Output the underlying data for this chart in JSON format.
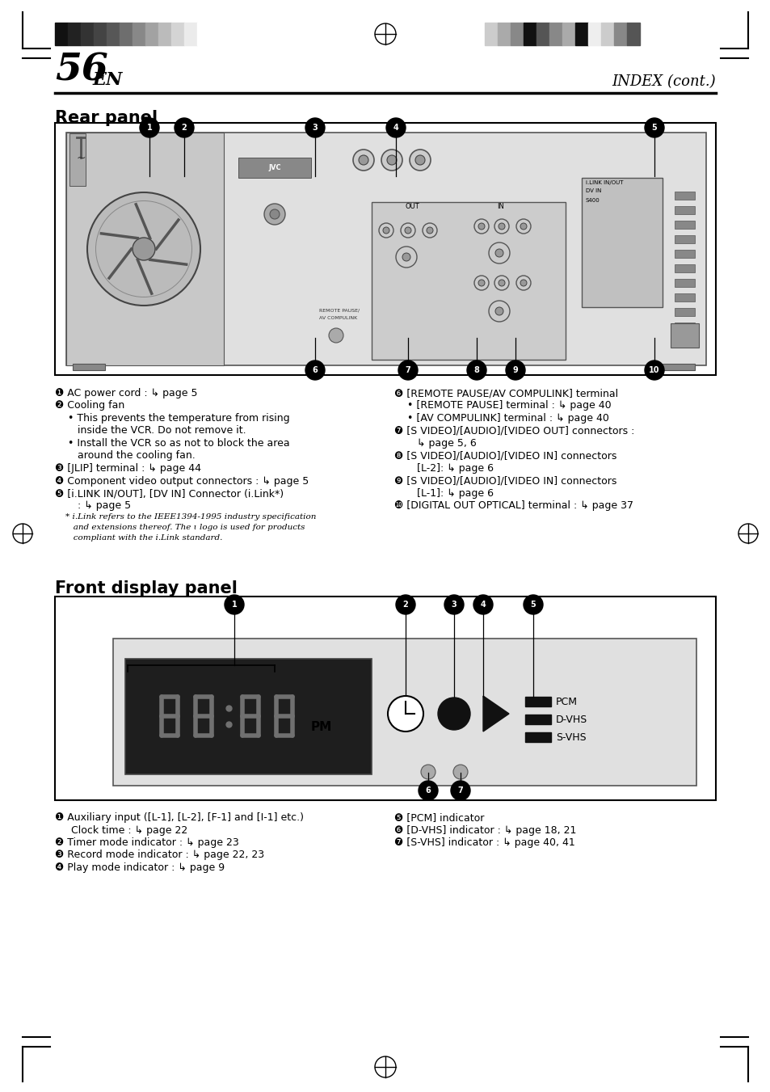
{
  "page_number": "56",
  "page_suffix": "EN",
  "header_right": "INDEX (cont.)",
  "section1_title": "Rear panel",
  "section2_title": "Front display panel",
  "bg_color": "#ffffff",
  "left_color_strips": [
    "#111111",
    "#222222",
    "#333333",
    "#444444",
    "#575757",
    "#6e6e6e",
    "#888888",
    "#a2a2a2",
    "#bbbbbb",
    "#d4d4d4",
    "#ebebeb",
    "#ffffff"
  ],
  "right_color_strips": [
    "#cccccc",
    "#aaaaaa",
    "#888888",
    "#111111",
    "#555555",
    "#888888",
    "#aaaaaa",
    "#111111",
    "#eeeeee",
    "#cccccc",
    "#888888",
    "#555555"
  ],
  "rear_text_left": [
    [
      "bold",
      "❶ AC power cord : ↳ page 5"
    ],
    [
      "bold",
      "❷ Cooling fan"
    ],
    [
      "normal",
      "    • This prevents the temperature from rising"
    ],
    [
      "normal",
      "       inside the VCR. Do not remove it."
    ],
    [
      "normal",
      "    • Install the VCR so as not to block the area"
    ],
    [
      "normal",
      "       around the cooling fan."
    ],
    [
      "bold",
      "❸ [JLIP] terminal : ↳ page 44"
    ],
    [
      "bold",
      "❹ Component video output connectors : ↳ page 5"
    ],
    [
      "bold",
      "❺ [i.LINK IN/OUT], [DV IN] Connector (i.Link*)"
    ],
    [
      "normal",
      "       : ↳ page 5"
    ],
    [
      "italic",
      "    * i.Link refers to the IEEE1394-1995 industry specification"
    ],
    [
      "italic",
      "       and extensions thereof. The ɩ logo is used for products"
    ],
    [
      "italic",
      "       compliant with the i.Link standard."
    ]
  ],
  "rear_text_right": [
    [
      "bold",
      "❻ [REMOTE PAUSE/AV COMPULINK] terminal"
    ],
    [
      "normal",
      "    • [REMOTE PAUSE] terminal : ↳ page 40"
    ],
    [
      "normal",
      "    • [AV COMPULINK] terminal : ↳ page 40"
    ],
    [
      "bold",
      "❼ [S VIDEO]/[AUDIO]/[VIDEO OUT] connectors :"
    ],
    [
      "normal",
      "       ↳ page 5, 6"
    ],
    [
      "bold",
      "❽ [S VIDEO]/[AUDIO]/[VIDEO IN] connectors"
    ],
    [
      "normal",
      "       [L-2]: ↳ page 6"
    ],
    [
      "bold",
      "❾ [S VIDEO]/[AUDIO]/[VIDEO IN] connectors"
    ],
    [
      "normal",
      "       [L-1]: ↳ page 6"
    ],
    [
      "bold",
      "❿ [DIGITAL OUT OPTICAL] terminal : ↳ page 37"
    ]
  ],
  "front_text_left": [
    [
      "bold",
      "❶ Auxiliary input ([L-1], [L-2], [F-1] and [I-1] etc.)"
    ],
    [
      "normal",
      "     Clock time : ↳ page 22"
    ],
    [
      "bold",
      "❷ Timer mode indicator : ↳ page 23"
    ],
    [
      "bold",
      "❸ Record mode indicator : ↳ page 22, 23"
    ],
    [
      "bold",
      "❹ Play mode indicator : ↳ page 9"
    ]
  ],
  "front_text_right": [
    [
      "bold",
      "❺ [PCM] indicator"
    ],
    [
      "bold",
      "❻ [D-VHS] indicator : ↳ page 18, 21"
    ],
    [
      "bold",
      "❼ [S-VHS] indicator : ↳ page 40, 41"
    ]
  ]
}
